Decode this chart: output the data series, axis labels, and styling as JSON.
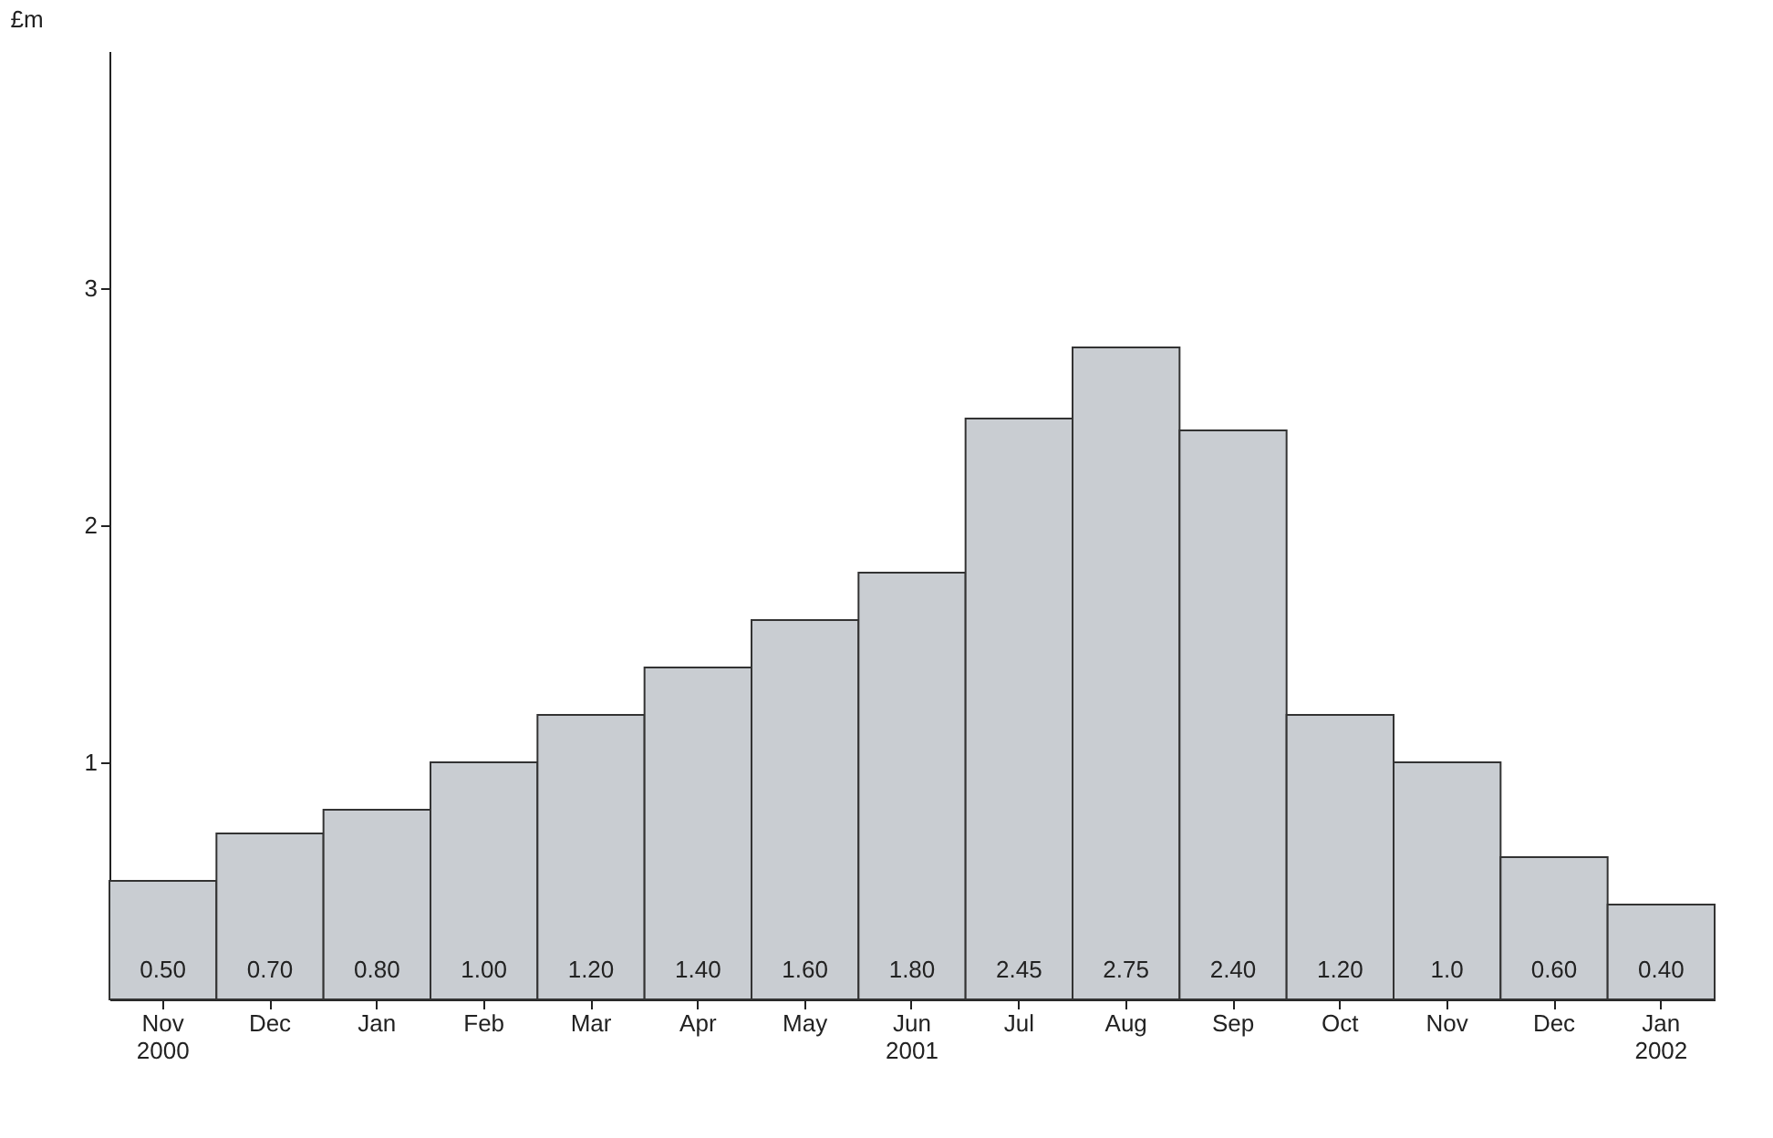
{
  "chart_data": {
    "type": "bar",
    "ylabel": "£m",
    "categories": [
      "Nov\n2000",
      "Dec",
      "Jan",
      "Feb",
      "Mar",
      "Apr",
      "May",
      "Jun\n2001",
      "Jul",
      "Aug",
      "Sep",
      "Oct",
      "Nov",
      "Dec",
      "Jan\n2002"
    ],
    "values": [
      0.5,
      0.7,
      0.8,
      1.0,
      1.2,
      1.4,
      1.6,
      1.8,
      2.45,
      2.75,
      2.4,
      1.2,
      1.0,
      0.6,
      0.4
    ],
    "value_labels": [
      "0.50",
      "0.70",
      "0.80",
      "1.00",
      "1.20",
      "1.40",
      "1.60",
      "1.80",
      "2.45",
      "2.75",
      "2.40",
      "1.20",
      "1.0",
      "0.60",
      "0.40"
    ],
    "color": "#c9cdd2",
    "ylim": [
      0,
      4
    ],
    "yticks": [
      1,
      2,
      3
    ],
    "grid": false
  }
}
